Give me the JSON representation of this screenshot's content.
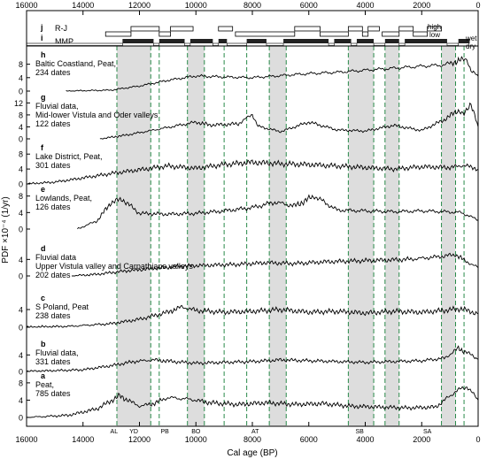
{
  "chart_data": {
    "type": "line",
    "xlabel": "Cal age (BP)",
    "ylabel": "PDF ×10⁻⁴ (1/yr)",
    "xlim": [
      16000,
      0
    ],
    "x_ticks": [
      16000,
      14000,
      12000,
      10000,
      8000,
      6000,
      4000,
      2000,
      0
    ],
    "shaded_bands": [
      [
        12800,
        11600
      ],
      [
        10300,
        9700
      ],
      [
        7400,
        6800
      ],
      [
        4600,
        3700
      ],
      [
        3300,
        2800
      ],
      [
        1300,
        800
      ]
    ],
    "dashed_lines": [
      12800,
      11600,
      11300,
      10300,
      9700,
      9000,
      8200,
      7400,
      6800,
      4600,
      3700,
      3300,
      2800,
      1300,
      800,
      500
    ],
    "period_labels": [
      {
        "label": "AL",
        "x": 12900
      },
      {
        "label": "YD",
        "x": 12200
      },
      {
        "label": "PB",
        "x": 11100
      },
      {
        "label": "BO",
        "x": 10000
      },
      {
        "label": "AT",
        "x": 7900
      },
      {
        "label": "SB",
        "x": 4200
      },
      {
        "label": "SA",
        "x": 1800
      }
    ],
    "top_rows": {
      "j": {
        "letter": "j",
        "label": "R-J",
        "high_label": "high",
        "low_label": "low",
        "high_segments": [
          [
            12300,
            11300
          ],
          [
            10900,
            10100
          ],
          [
            9200,
            8700
          ],
          [
            6500,
            5600
          ],
          [
            4600,
            4100
          ],
          [
            3900,
            3500
          ],
          [
            2800,
            2300
          ],
          [
            1800,
            1300
          ]
        ],
        "low_segments": [
          [
            13200,
            12300
          ],
          [
            11300,
            10900
          ],
          [
            8600,
            6500
          ],
          [
            5600,
            4600
          ],
          [
            4100,
            3900
          ],
          [
            3400,
            2800
          ],
          [
            2300,
            1800
          ]
        ]
      },
      "i": {
        "letter": "i",
        "label": "MMP",
        "wet_label": "wet",
        "dry_label": "dry",
        "wet_segments": [
          [
            12600,
            11500
          ],
          [
            11300,
            10400
          ],
          [
            10200,
            9400
          ],
          [
            9200,
            8900
          ],
          [
            8200,
            7500
          ],
          [
            6900,
            5300
          ],
          [
            5100,
            4500
          ],
          [
            4300,
            3700
          ],
          [
            3300,
            2800
          ],
          [
            2600,
            1100
          ],
          [
            700,
            300
          ]
        ],
        "dry_segments": [
          [
            16000,
            12600
          ],
          [
            11500,
            11300
          ],
          [
            10400,
            10200
          ],
          [
            9400,
            9200
          ],
          [
            8900,
            8200
          ],
          [
            7500,
            6900
          ],
          [
            5300,
            5100
          ],
          [
            4500,
            4300
          ],
          [
            3700,
            3300
          ],
          [
            2800,
            2600
          ],
          [
            1100,
            700
          ]
        ]
      }
    },
    "series": [
      {
        "letter": "h",
        "name": "Baltic Coastland, Peat,",
        "dates": "234 dates",
        "ticks": [
          8,
          4,
          0
        ],
        "ymax": 10,
        "points": [
          [
            14600,
            0
          ],
          [
            13000,
            0.3
          ],
          [
            12000,
            1.5
          ],
          [
            11000,
            3.2
          ],
          [
            10000,
            4.5
          ],
          [
            9000,
            4.2
          ],
          [
            8000,
            4.0
          ],
          [
            7000,
            4.6
          ],
          [
            6000,
            5.2
          ],
          [
            5000,
            5.6
          ],
          [
            4000,
            6.2
          ],
          [
            3000,
            6.8
          ],
          [
            2000,
            7.4
          ],
          [
            1200,
            7.8
          ],
          [
            700,
            9.0
          ],
          [
            400,
            9.6
          ],
          [
            250,
            6.0
          ],
          [
            0,
            4.4
          ]
        ]
      },
      {
        "letter": "g",
        "name": "Fluvial data,",
        "name2": "Mid-lower Vistula and Oder valleys",
        "dates": "122 dates",
        "ticks": [
          12,
          8,
          4,
          0
        ],
        "ymax": 13,
        "points": [
          [
            13400,
            0
          ],
          [
            12500,
            1.2
          ],
          [
            11000,
            3.8
          ],
          [
            10000,
            5.6
          ],
          [
            9500,
            4.6
          ],
          [
            8500,
            5.0
          ],
          [
            8000,
            8.2
          ],
          [
            7800,
            4.2
          ],
          [
            7000,
            2.4
          ],
          [
            6000,
            5.6
          ],
          [
            5000,
            3.0
          ],
          [
            4000,
            2.6
          ],
          [
            3000,
            4.5
          ],
          [
            2000,
            2.8
          ],
          [
            1200,
            6.4
          ],
          [
            700,
            9.6
          ],
          [
            500,
            8.0
          ],
          [
            250,
            12.0
          ],
          [
            0,
            4.0
          ]
        ]
      },
      {
        "letter": "f",
        "name": "Lake District, Peat,",
        "dates": "301 dates",
        "ticks": [
          8,
          4,
          0
        ],
        "ymax": 9,
        "points": [
          [
            16000,
            0
          ],
          [
            15000,
            0.5
          ],
          [
            14000,
            1.6
          ],
          [
            13000,
            2.8
          ],
          [
            12000,
            3.8
          ],
          [
            11000,
            4.8
          ],
          [
            10000,
            4.2
          ],
          [
            9000,
            5.2
          ],
          [
            8000,
            5.8
          ],
          [
            7000,
            5.4
          ],
          [
            6000,
            5.2
          ],
          [
            5000,
            4.8
          ],
          [
            4000,
            4.4
          ],
          [
            3000,
            4.0
          ],
          [
            2000,
            4.6
          ],
          [
            1000,
            4.4
          ],
          [
            500,
            5.0
          ],
          [
            0,
            4.0
          ]
        ]
      },
      {
        "letter": "e",
        "name": "Lowlands, Peat,",
        "dates": "126 dates",
        "ticks": [
          8,
          4,
          0
        ],
        "ymax": 9,
        "points": [
          [
            14200,
            0
          ],
          [
            13500,
            2.0
          ],
          [
            13000,
            6.5
          ],
          [
            12600,
            7.2
          ],
          [
            12000,
            3.8
          ],
          [
            11000,
            3.6
          ],
          [
            10000,
            3.8
          ],
          [
            9000,
            4.4
          ],
          [
            8000,
            5.2
          ],
          [
            7200,
            6.5
          ],
          [
            6500,
            5.6
          ],
          [
            5800,
            8.0
          ],
          [
            5000,
            4.6
          ],
          [
            4000,
            4.4
          ],
          [
            3000,
            4.2
          ],
          [
            2000,
            4.4
          ],
          [
            1200,
            4.2
          ],
          [
            600,
            4.0
          ],
          [
            0,
            2.2
          ]
        ]
      },
      {
        "letter": "d",
        "name": "Fluvial data",
        "name2": "Upper Vistula valley and Carpathians valleys",
        "dates": "202 dates",
        "ticks": [
          4,
          0
        ],
        "ymax": 6,
        "points": [
          [
            14400,
            0
          ],
          [
            13500,
            0.4
          ],
          [
            12500,
            1.2
          ],
          [
            11500,
            1.8
          ],
          [
            10500,
            2.4
          ],
          [
            9500,
            2.6
          ],
          [
            8500,
            2.8
          ],
          [
            7500,
            3.2
          ],
          [
            6500,
            3.0
          ],
          [
            5500,
            3.4
          ],
          [
            4500,
            3.6
          ],
          [
            3500,
            3.8
          ],
          [
            2500,
            4.0
          ],
          [
            1800,
            4.4
          ],
          [
            1200,
            4.8
          ],
          [
            800,
            5.2
          ],
          [
            500,
            3.8
          ],
          [
            0,
            2.0
          ]
        ]
      },
      {
        "letter": "c",
        "name": "S Poland, Peat",
        "dates": "238 dates",
        "ticks": [
          4,
          0
        ],
        "ymax": 6,
        "points": [
          [
            16000,
            0
          ],
          [
            14500,
            0.2
          ],
          [
            13000,
            0.8
          ],
          [
            12000,
            1.8
          ],
          [
            11000,
            3.4
          ],
          [
            10500,
            4.6
          ],
          [
            10000,
            3.8
          ],
          [
            9000,
            3.4
          ],
          [
            8000,
            3.6
          ],
          [
            7000,
            4.0
          ],
          [
            6000,
            3.4
          ],
          [
            5000,
            3.6
          ],
          [
            4000,
            3.2
          ],
          [
            3000,
            3.6
          ],
          [
            2000,
            3.4
          ],
          [
            1200,
            3.8
          ],
          [
            600,
            4.2
          ],
          [
            0,
            3.0
          ]
        ]
      },
      {
        "letter": "b",
        "name": "Fluvial data,",
        "dates": "331 dates",
        "ticks": [
          4,
          0
        ],
        "ymax": 6,
        "points": [
          [
            16000,
            0
          ],
          [
            14000,
            0.4
          ],
          [
            13000,
            1.4
          ],
          [
            12200,
            2.4
          ],
          [
            11500,
            2.8
          ],
          [
            10800,
            2.4
          ],
          [
            10000,
            2.0
          ],
          [
            9000,
            2.2
          ],
          [
            8000,
            2.4
          ],
          [
            7000,
            2.8
          ],
          [
            6000,
            2.6
          ],
          [
            5000,
            2.4
          ],
          [
            4000,
            2.2
          ],
          [
            3000,
            2.4
          ],
          [
            2000,
            2.6
          ],
          [
            1200,
            3.2
          ],
          [
            700,
            5.6
          ],
          [
            400,
            4.6
          ],
          [
            0,
            3.0
          ]
        ]
      },
      {
        "letter": "a",
        "name": "Peat,",
        "dates": "785 dates",
        "ticks": [
          8,
          4,
          0
        ],
        "ymax": 9,
        "points": [
          [
            16000,
            0
          ],
          [
            14500,
            0.5
          ],
          [
            13500,
            2.0
          ],
          [
            12700,
            5.0
          ],
          [
            12000,
            2.6
          ],
          [
            11500,
            3.2
          ],
          [
            11000,
            4.6
          ],
          [
            10200,
            4.2
          ],
          [
            9500,
            3.4
          ],
          [
            8500,
            3.0
          ],
          [
            7500,
            3.4
          ],
          [
            6500,
            3.0
          ],
          [
            5500,
            3.2
          ],
          [
            4500,
            2.6
          ],
          [
            3500,
            2.4
          ],
          [
            2500,
            2.2
          ],
          [
            1500,
            2.4
          ],
          [
            800,
            6.0
          ],
          [
            400,
            7.2
          ],
          [
            0,
            4.0
          ]
        ]
      }
    ]
  }
}
